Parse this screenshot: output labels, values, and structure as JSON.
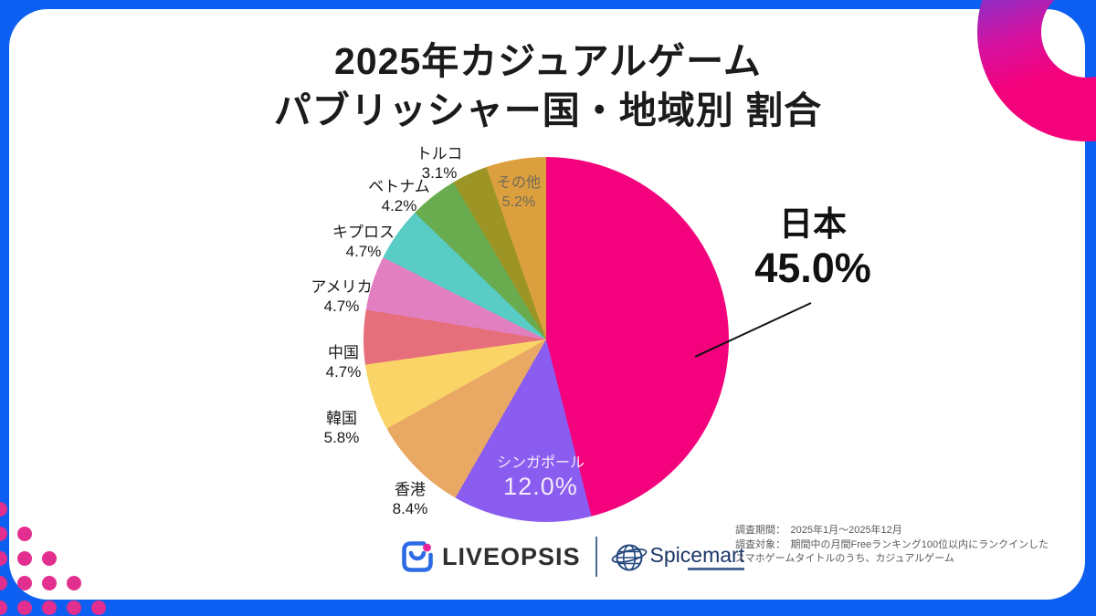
{
  "title": {
    "line1": "2025年カジュアルゲーム",
    "line2": "パブリッシャー国・地域別 割合"
  },
  "chart_data": {
    "type": "pie",
    "title": "2025年カジュアルゲーム パブリッシャー国・地域別 割合",
    "start_angle_deg": 0,
    "direction": "clockwise",
    "unit": "%",
    "slices": [
      {
        "label": "日本",
        "value": 45.0,
        "display": "45.0%",
        "color": "#F4027D"
      },
      {
        "label": "シンガポール",
        "value": 12.0,
        "display": "12.0%",
        "color": "#8A5CF0"
      },
      {
        "label": "香港",
        "value": 8.4,
        "display": "8.4%",
        "color": "#E9A965"
      },
      {
        "label": "韓国",
        "value": 5.8,
        "display": "5.8%",
        "color": "#FAD466"
      },
      {
        "label": "中国",
        "value": 4.7,
        "display": "4.7%",
        "color": "#E56F7B"
      },
      {
        "label": "アメリカ",
        "value": 4.7,
        "display": "4.7%",
        "color": "#E27FC1"
      },
      {
        "label": "キプロス",
        "value": 4.7,
        "display": "4.7%",
        "color": "#58CCC5"
      },
      {
        "label": "ベトナム",
        "value": 4.2,
        "display": "4.2%",
        "color": "#69AC50"
      },
      {
        "label": "トルコ",
        "value": 3.1,
        "display": "3.1%",
        "color": "#9C9525"
      },
      {
        "label": "その他",
        "value": 5.2,
        "display": "5.2%",
        "color": "#DC9F3E"
      }
    ]
  },
  "footer": {
    "liveopsis_label": "LIVEOPSIS",
    "spicemart_label": "Spicemart",
    "notes": [
      "調査期間：　2025年1月～2025年12月",
      "調査対象：　期間中の月間Freeランキング100位以内にランクインした",
      "スマホゲームタイトルのうち、カジュアルゲーム"
    ]
  },
  "colors": {
    "frame_blue": "#0C5FF0",
    "content_white": "#FFFFFF",
    "deco_magenta": "#E22E8E",
    "deco_ring_purple": "#6D3BD8",
    "deco_ring_pink": "#F4017C",
    "title_text": "#1B1B1B",
    "note_text": "#595959",
    "logo_navy": "#1C3668"
  }
}
